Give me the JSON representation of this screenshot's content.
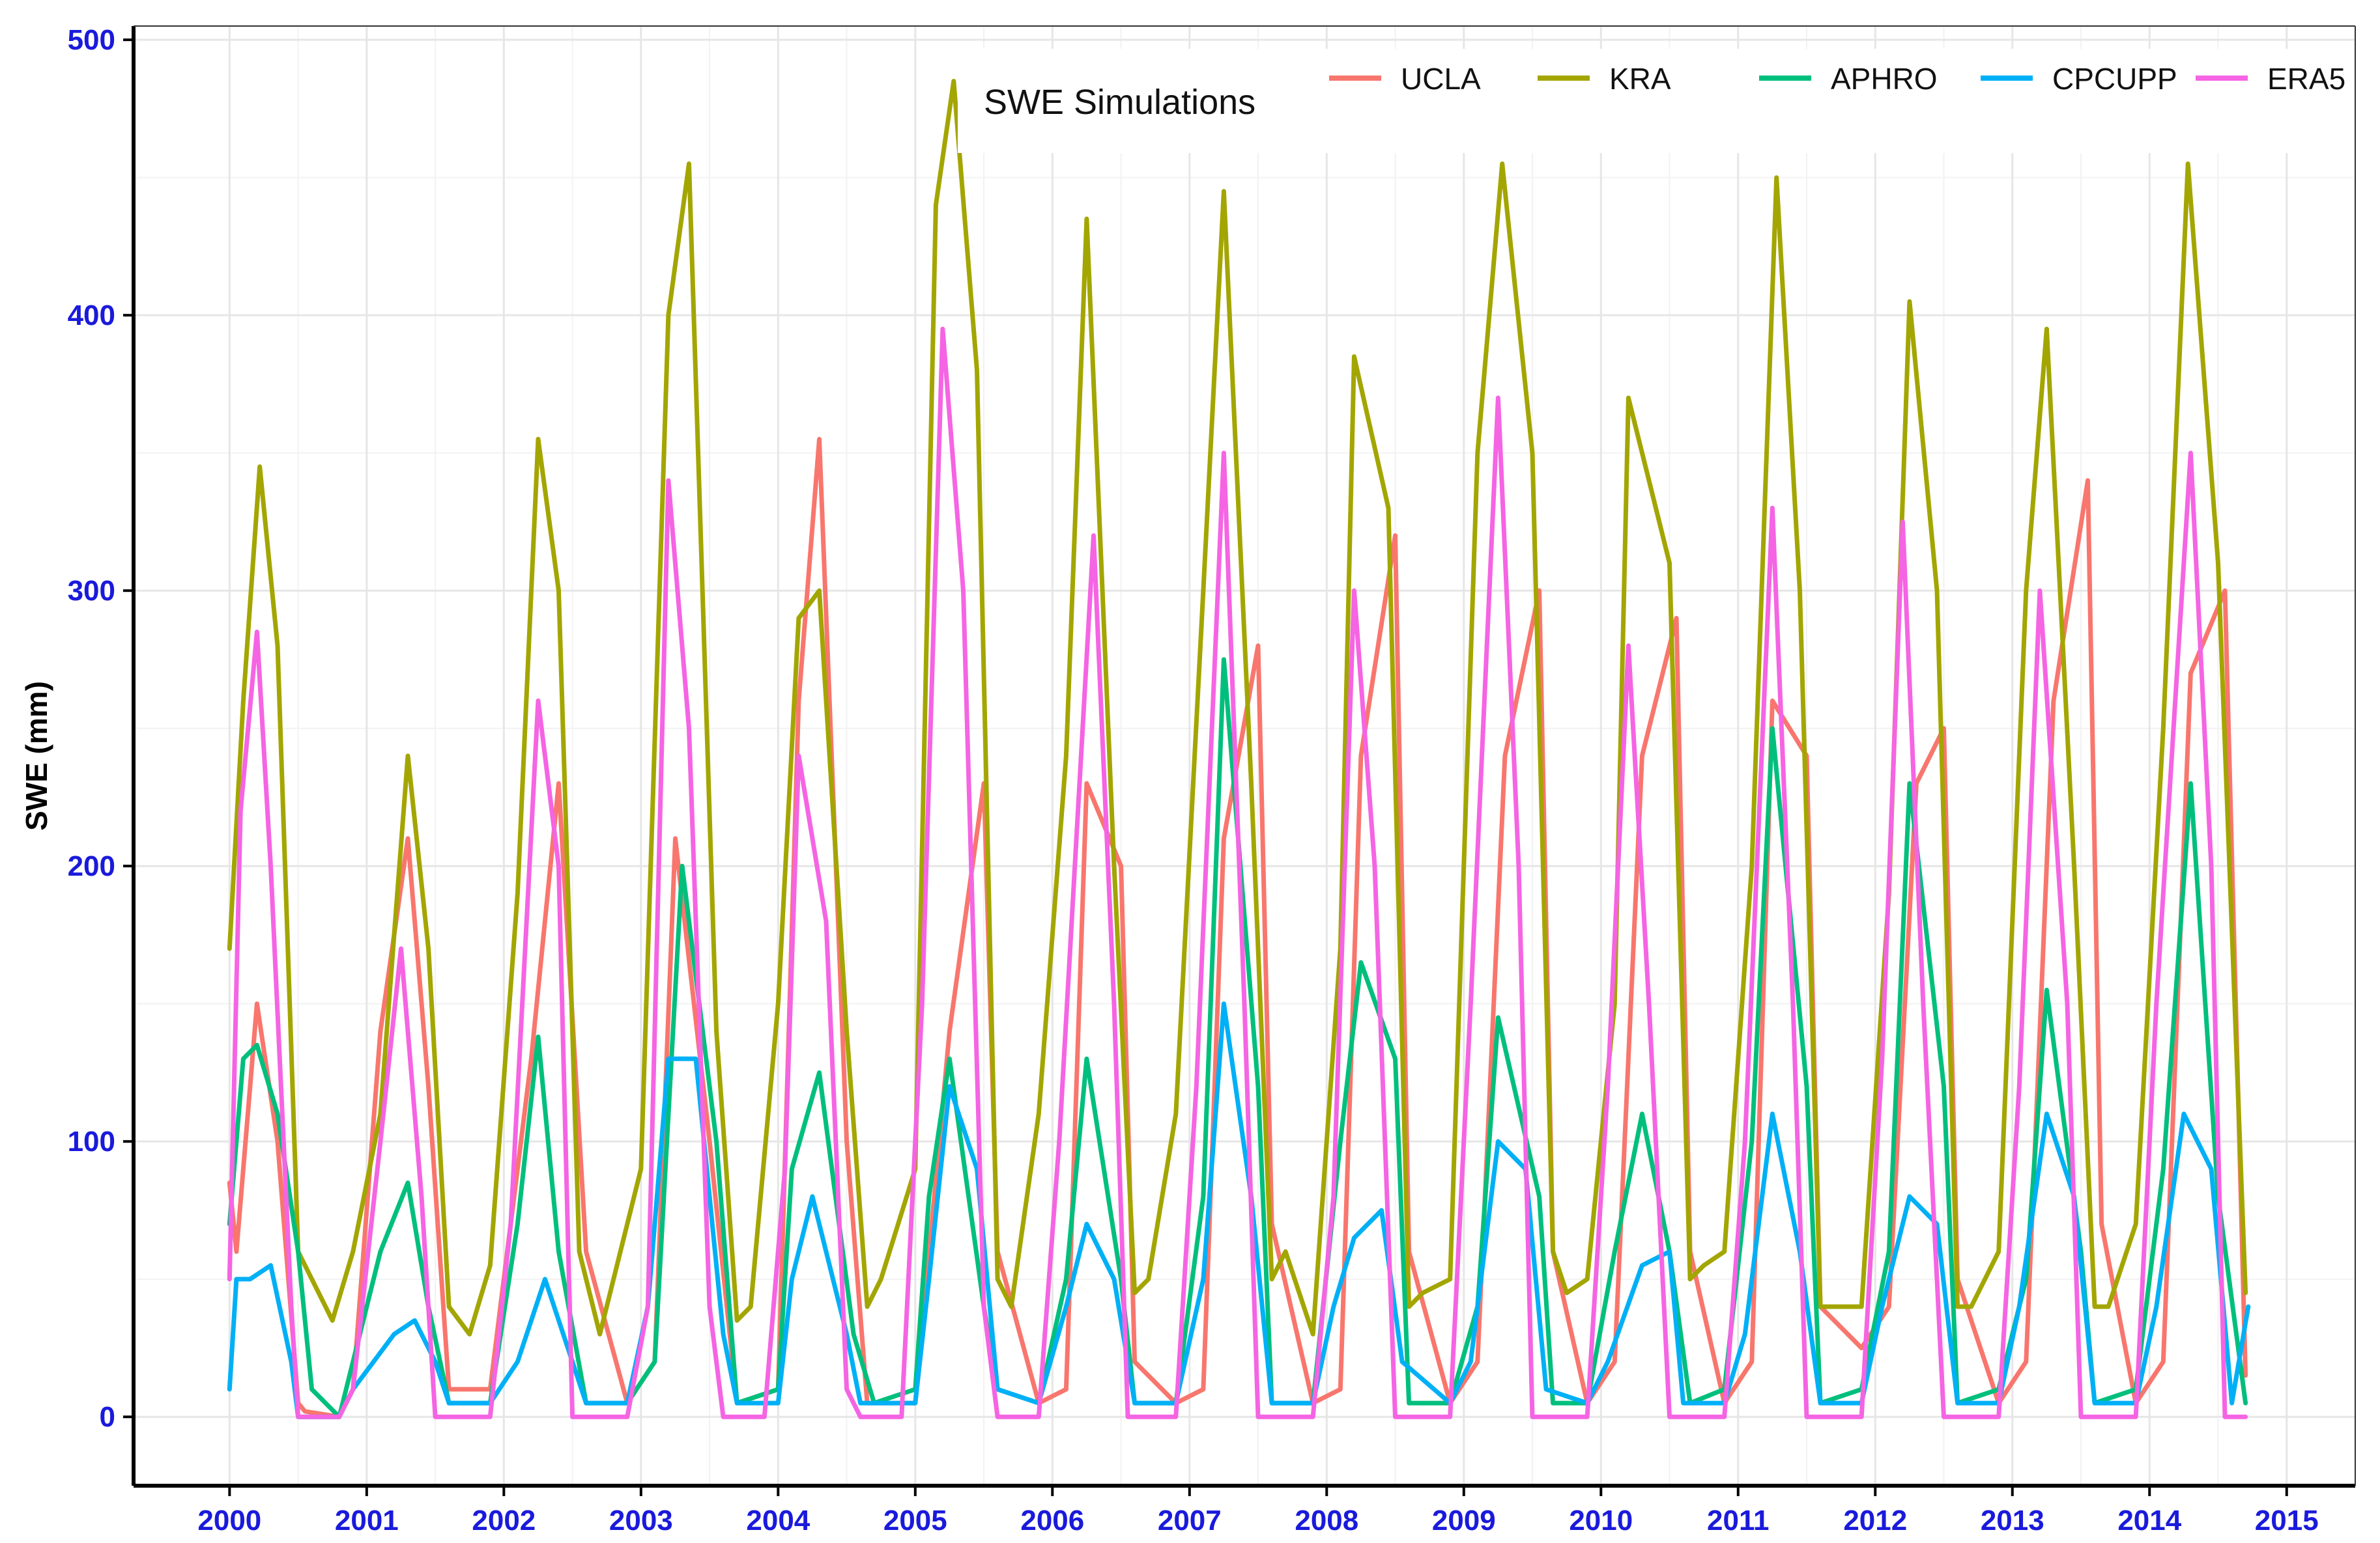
{
  "chart_data": {
    "type": "line",
    "title": "",
    "xlabel": "",
    "ylabel": "SWE (mm)",
    "xlim": [
      1999.3,
      2015.5
    ],
    "ylim": [
      -25,
      505
    ],
    "x_ticks": [
      "2000",
      "2001",
      "2002",
      "2003",
      "2004",
      "2005",
      "2006",
      "2007",
      "2008",
      "2009",
      "2010",
      "2011",
      "2012",
      "2013",
      "2014",
      "2015"
    ],
    "y_ticks": [
      "0",
      "100",
      "200",
      "300",
      "400",
      "500"
    ],
    "grid": true,
    "legend": {
      "title": "SWE Simulations",
      "position": "top-right",
      "orientation": "horizontal"
    },
    "series": [
      {
        "name": "UCLA",
        "color": "#F8766D",
        "x": [
          2000.0,
          2000.05,
          2000.2,
          2000.35,
          2000.5,
          2000.55,
          2000.8,
          2000.9,
          2001.1,
          2001.3,
          2001.45,
          2001.6,
          2001.9,
          2002.2,
          2002.4,
          2002.6,
          2002.9,
          2003.1,
          2003.25,
          2003.5,
          2003.7,
          2004.0,
          2004.15,
          2004.3,
          2004.5,
          2004.65,
          2005.0,
          2005.25,
          2005.5,
          2005.6,
          2005.9,
          2006.1,
          2006.25,
          2006.5,
          2006.6,
          2006.9,
          2007.1,
          2007.25,
          2007.5,
          2007.6,
          2007.9,
          2008.1,
          2008.25,
          2008.5,
          2008.6,
          2008.9,
          2009.1,
          2009.3,
          2009.55,
          2009.65,
          2009.9,
          2010.1,
          2010.3,
          2010.55,
          2010.65,
          2010.9,
          2011.1,
          2011.25,
          2011.5,
          2011.6,
          2011.9,
          2012.1,
          2012.3,
          2012.5,
          2012.6,
          2012.9,
          2013.1,
          2013.3,
          2013.55,
          2013.65,
          2013.9,
          2014.1,
          2014.3,
          2014.55,
          2014.7
        ],
        "y": [
          85,
          60,
          150,
          100,
          5,
          2,
          0,
          10,
          140,
          210,
          120,
          10,
          10,
          130,
          230,
          60,
          5,
          20,
          210,
          100,
          5,
          10,
          260,
          355,
          100,
          5,
          5,
          140,
          230,
          60,
          5,
          10,
          230,
          200,
          20,
          5,
          10,
          210,
          280,
          70,
          5,
          10,
          240,
          320,
          60,
          5,
          20,
          240,
          300,
          60,
          5,
          20,
          240,
          290,
          60,
          5,
          20,
          260,
          240,
          40,
          25,
          40,
          230,
          250,
          50,
          5,
          20,
          260,
          340,
          70,
          5,
          20,
          270,
          300,
          15
        ]
      },
      {
        "name": "KRA",
        "color": "#A3A500",
        "x": [
          2000.0,
          2000.1,
          2000.22,
          2000.35,
          2000.5,
          2000.65,
          2000.75,
          2000.9,
          2001.1,
          2001.3,
          2001.45,
          2001.6,
          2001.75,
          2001.9,
          2002.1,
          2002.25,
          2002.4,
          2002.55,
          2002.7,
          2002.8,
          2003.0,
          2003.2,
          2003.35,
          2003.55,
          2003.7,
          2003.8,
          2004.0,
          2004.15,
          2004.3,
          2004.5,
          2004.65,
          2004.75,
          2005.0,
          2005.15,
          2005.28,
          2005.45,
          2005.6,
          2005.7,
          2005.9,
          2006.1,
          2006.25,
          2006.45,
          2006.6,
          2006.7,
          2006.9,
          2007.1,
          2007.25,
          2007.45,
          2007.6,
          2007.7,
          2007.9,
          2008.1,
          2008.2,
          2008.45,
          2008.6,
          2008.7,
          2008.9,
          2009.1,
          2009.28,
          2009.5,
          2009.65,
          2009.75,
          2009.9,
          2010.1,
          2010.2,
          2010.5,
          2010.65,
          2010.75,
          2010.9,
          2011.1,
          2011.28,
          2011.45,
          2011.6,
          2011.7,
          2011.9,
          2012.1,
          2012.25,
          2012.45,
          2012.6,
          2012.7,
          2012.9,
          2013.1,
          2013.25,
          2013.45,
          2013.6,
          2013.7,
          2013.9,
          2014.1,
          2014.28,
          2014.5,
          2014.7
        ],
        "y": [
          170,
          260,
          345,
          280,
          60,
          45,
          35,
          60,
          110,
          240,
          170,
          40,
          30,
          55,
          190,
          355,
          300,
          60,
          30,
          50,
          90,
          400,
          455,
          140,
          35,
          40,
          150,
          290,
          300,
          140,
          40,
          50,
          90,
          440,
          485,
          380,
          50,
          40,
          110,
          240,
          435,
          200,
          45,
          50,
          110,
          300,
          445,
          230,
          50,
          60,
          30,
          170,
          385,
          330,
          40,
          45,
          50,
          350,
          455,
          350,
          60,
          45,
          50,
          150,
          370,
          310,
          50,
          55,
          60,
          200,
          450,
          300,
          40,
          40,
          40,
          190,
          405,
          300,
          40,
          40,
          60,
          300,
          395,
          200,
          40,
          40,
          70,
          250,
          455,
          310,
          45
        ]
      },
      {
        "name": "APHRO",
        "color": "#00BF7D",
        "x": [
          2000.0,
          2000.1,
          2000.2,
          2000.35,
          2000.5,
          2000.6,
          2000.8,
          2000.9,
          2001.1,
          2001.3,
          2001.45,
          2001.6,
          2001.9,
          2002.1,
          2002.25,
          2002.4,
          2002.6,
          2002.9,
          2003.1,
          2003.3,
          2003.55,
          2003.7,
          2004.0,
          2004.1,
          2004.3,
          2004.55,
          2004.7,
          2005.0,
          2005.1,
          2005.25,
          2005.5,
          2005.6,
          2005.9,
          2006.1,
          2006.25,
          2006.5,
          2006.6,
          2006.9,
          2007.1,
          2007.25,
          2007.5,
          2007.6,
          2007.9,
          2008.1,
          2008.25,
          2008.5,
          2008.6,
          2008.9,
          2009.1,
          2009.25,
          2009.55,
          2009.65,
          2009.9,
          2010.1,
          2010.3,
          2010.5,
          2010.65,
          2010.9,
          2011.1,
          2011.25,
          2011.5,
          2011.6,
          2011.9,
          2012.1,
          2012.25,
          2012.5,
          2012.6,
          2012.9,
          2013.1,
          2013.25,
          2013.5,
          2013.6,
          2013.9,
          2014.1,
          2014.3,
          2014.5,
          2014.7
        ],
        "y": [
          70,
          130,
          135,
          110,
          60,
          10,
          0,
          20,
          60,
          85,
          40,
          5,
          5,
          70,
          138,
          60,
          5,
          5,
          20,
          200,
          100,
          5,
          10,
          90,
          125,
          30,
          5,
          10,
          80,
          130,
          40,
          10,
          5,
          50,
          130,
          50,
          5,
          5,
          80,
          275,
          120,
          5,
          5,
          100,
          165,
          130,
          5,
          5,
          40,
          145,
          80,
          5,
          5,
          60,
          110,
          60,
          5,
          10,
          100,
          250,
          120,
          5,
          10,
          60,
          230,
          120,
          5,
          10,
          50,
          155,
          60,
          5,
          10,
          90,
          230,
          80,
          5
        ]
      },
      {
        "name": "CPCUPP",
        "color": "#00B0F6",
        "x": [
          2000.0,
          2000.05,
          2000.15,
          2000.3,
          2000.45,
          2000.5,
          2000.8,
          2000.9,
          2001.2,
          2001.35,
          2001.5,
          2001.6,
          2001.9,
          2002.1,
          2002.3,
          2002.5,
          2002.6,
          2002.9,
          2003.05,
          2003.2,
          2003.4,
          2003.6,
          2003.7,
          2004.0,
          2004.1,
          2004.25,
          2004.5,
          2004.6,
          2005.0,
          2005.1,
          2005.25,
          2005.45,
          2005.6,
          2005.9,
          2006.1,
          2006.25,
          2006.45,
          2006.6,
          2006.9,
          2007.1,
          2007.25,
          2007.45,
          2007.6,
          2007.9,
          2008.05,
          2008.2,
          2008.4,
          2008.55,
          2008.9,
          2009.05,
          2009.25,
          2009.45,
          2009.6,
          2009.9,
          2010.05,
          2010.3,
          2010.5,
          2010.6,
          2010.9,
          2011.05,
          2011.25,
          2011.45,
          2011.6,
          2011.9,
          2012.05,
          2012.25,
          2012.45,
          2012.6,
          2012.9,
          2013.05,
          2013.25,
          2013.45,
          2013.6,
          2013.9,
          2014.05,
          2014.25,
          2014.45,
          2014.6,
          2014.72
        ],
        "y": [
          10,
          50,
          50,
          55,
          20,
          0,
          0,
          10,
          30,
          35,
          20,
          5,
          5,
          20,
          50,
          20,
          5,
          5,
          40,
          130,
          130,
          30,
          5,
          5,
          50,
          80,
          30,
          5,
          5,
          50,
          120,
          90,
          10,
          5,
          40,
          70,
          50,
          5,
          5,
          50,
          150,
          80,
          5,
          5,
          40,
          65,
          75,
          20,
          5,
          20,
          100,
          90,
          10,
          5,
          20,
          55,
          60,
          5,
          5,
          30,
          110,
          60,
          5,
          5,
          40,
          80,
          70,
          5,
          5,
          40,
          110,
          80,
          5,
          5,
          40,
          110,
          90,
          5,
          40
        ]
      },
      {
        "name": "ERA5",
        "color": "#F564E3",
        "x": [
          2000.0,
          2000.08,
          2000.2,
          2000.3,
          2000.45,
          2000.5,
          2000.8,
          2000.9,
          2001.1,
          2001.25,
          2001.4,
          2001.5,
          2001.9,
          2002.05,
          2002.25,
          2002.4,
          2002.5,
          2002.9,
          2003.05,
          2003.2,
          2003.35,
          2003.5,
          2003.6,
          2003.9,
          2004.05,
          2004.15,
          2004.35,
          2004.5,
          2004.6,
          2004.9,
          2005.05,
          2005.2,
          2005.35,
          2005.5,
          2005.6,
          2005.9,
          2006.05,
          2006.3,
          2006.45,
          2006.55,
          2006.9,
          2007.05,
          2007.25,
          2007.4,
          2007.5,
          2007.9,
          2008.05,
          2008.2,
          2008.35,
          2008.5,
          2008.9,
          2009.05,
          2009.25,
          2009.4,
          2009.5,
          2009.9,
          2010.05,
          2010.2,
          2010.35,
          2010.5,
          2010.9,
          2011.05,
          2011.25,
          2011.4,
          2011.5,
          2011.9,
          2012.05,
          2012.2,
          2012.35,
          2012.5,
          2012.9,
          2013.05,
          2013.2,
          2013.4,
          2013.5,
          2013.9,
          2014.05,
          2014.3,
          2014.45,
          2014.55,
          2014.7
        ],
        "y": [
          50,
          220,
          285,
          200,
          40,
          0,
          0,
          10,
          100,
          170,
          80,
          0,
          0,
          70,
          260,
          200,
          0,
          0,
          40,
          340,
          250,
          40,
          0,
          0,
          90,
          240,
          180,
          10,
          0,
          0,
          150,
          395,
          300,
          40,
          0,
          0,
          100,
          320,
          150,
          0,
          0,
          120,
          350,
          150,
          0,
          0,
          80,
          300,
          200,
          0,
          0,
          150,
          370,
          200,
          0,
          0,
          120,
          280,
          150,
          0,
          0,
          100,
          330,
          150,
          0,
          0,
          130,
          325,
          150,
          0,
          0,
          120,
          300,
          150,
          0,
          0,
          150,
          350,
          200,
          0,
          0
        ]
      }
    ]
  }
}
